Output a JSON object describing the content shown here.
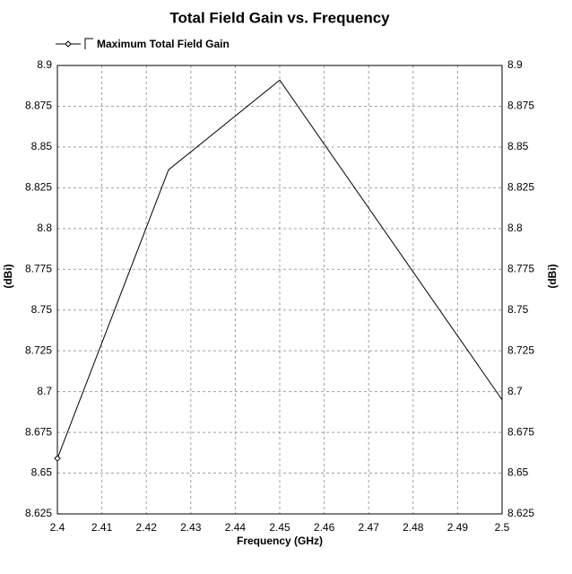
{
  "chart_data": {
    "type": "line",
    "title": "Total Field Gain vs. Frequency",
    "x_label": "Frequency (GHz)",
    "y_label": "(dBi)",
    "x": [
      2.4,
      2.425,
      2.45,
      2.5
    ],
    "series": [
      {
        "name": "Maximum Total Field Gain",
        "color": "#000000",
        "values": [
          8.659,
          8.836,
          8.891,
          8.695
        ]
      }
    ],
    "xlim": [
      2.4,
      2.5
    ],
    "xticks": [
      2.4,
      2.41,
      2.42,
      2.43,
      2.44,
      2.45,
      2.46,
      2.47,
      2.48,
      2.49,
      2.5
    ],
    "ylim": [
      8.625,
      8.9
    ],
    "yticks": [
      8.625,
      8.65,
      8.675,
      8.7,
      8.725,
      8.75,
      8.775,
      8.8,
      8.825,
      8.85,
      8.875,
      8.9
    ],
    "grid": true,
    "legend": "top-left"
  }
}
